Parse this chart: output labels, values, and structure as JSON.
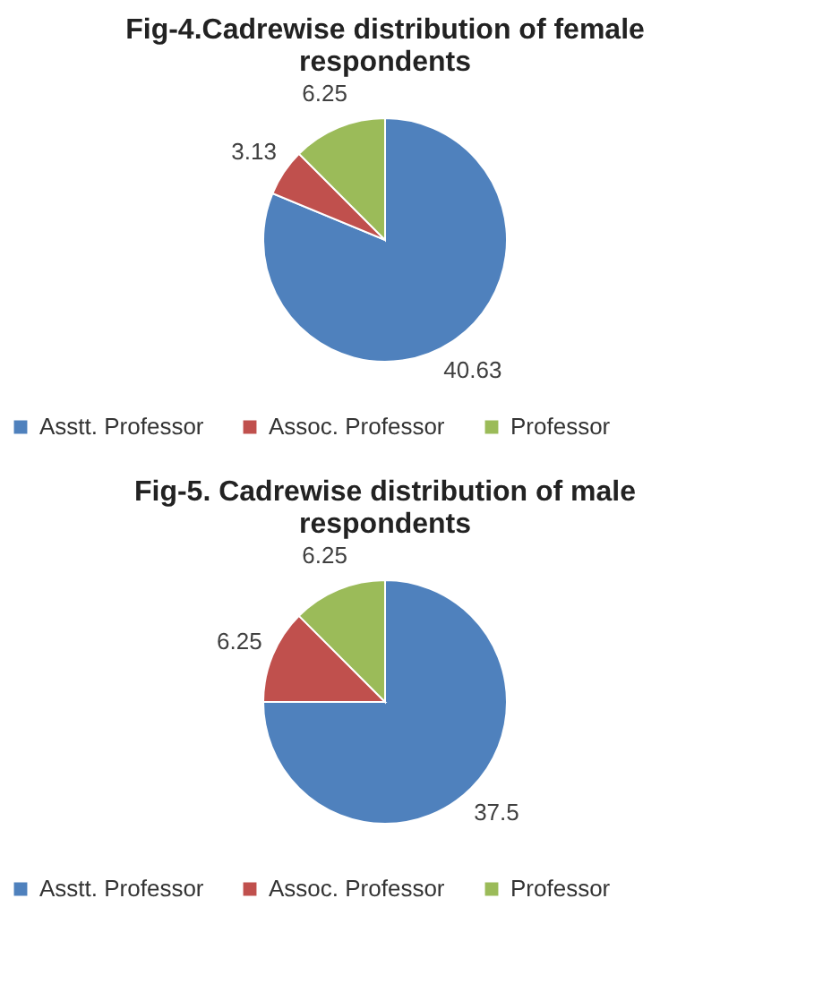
{
  "chart_data": [
    {
      "type": "pie",
      "title": "Fig-4.Cadrewise distribution of female respondents",
      "categories": [
        "Asstt. Professor",
        "Assoc. Professor",
        "Professor"
      ],
      "values": [
        40.63,
        3.13,
        6.25
      ],
      "colors": [
        "#4f81bd",
        "#c0504d",
        "#9bbb59"
      ],
      "data_labels": true,
      "legend": "bottom"
    },
    {
      "type": "pie",
      "title": "Fig-5. Cadrewise distribution of male respondents",
      "categories": [
        "Asstt. Professor",
        "Assoc. Professor",
        "Professor"
      ],
      "values": [
        37.5,
        6.25,
        6.25
      ],
      "colors": [
        "#4f81bd",
        "#c0504d",
        "#9bbb59"
      ],
      "data_labels": true,
      "legend": "bottom"
    }
  ]
}
